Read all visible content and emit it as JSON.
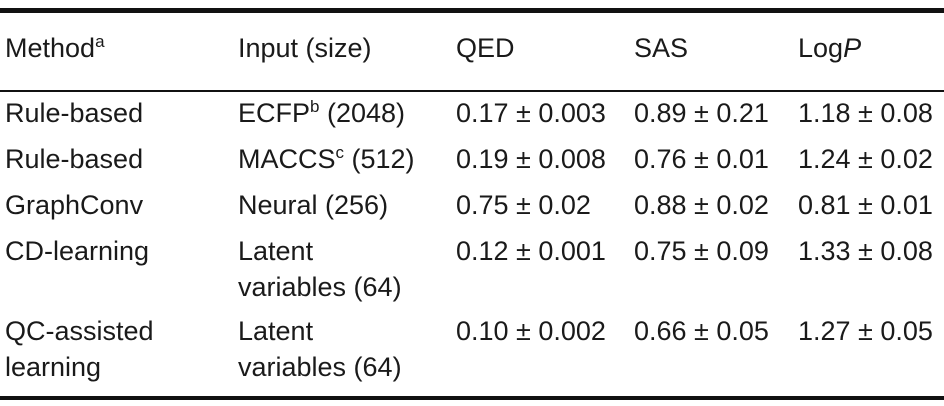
{
  "table": {
    "headers": {
      "method": "Method",
      "method_footnote": "a",
      "input": "Input (size)",
      "qed": "QED",
      "sas": "SAS",
      "logp_prefix": "Log",
      "logp_italic": "P"
    },
    "rows": [
      {
        "method_line1": "Rule-based",
        "method_line2": "",
        "input_main": "ECFP",
        "input_sup": "b",
        "input_rest": " (2048)",
        "input_line2": "",
        "qed": "0.17 ± 0.003",
        "sas": "0.89 ± 0.21",
        "logp": "1.18 ± 0.08"
      },
      {
        "method_line1": "Rule-based",
        "method_line2": "",
        "input_main": "MACCS",
        "input_sup": "c",
        "input_rest": " (512)",
        "input_line2": "",
        "qed": "0.19 ± 0.008",
        "sas": "0.76 ± 0.01",
        "logp": "1.24 ± 0.02"
      },
      {
        "method_line1": "GraphConv",
        "method_line2": "",
        "input_main": "Neural (256)",
        "input_sup": "",
        "input_rest": "",
        "input_line2": "",
        "qed": "0.75 ± 0.02",
        "sas": "0.88 ± 0.02",
        "logp": "0.81 ± 0.01"
      },
      {
        "method_line1": "CD-learning",
        "method_line2": "",
        "input_main": "Latent",
        "input_sup": "",
        "input_rest": "",
        "input_line2": "variables (64)",
        "qed": "0.12 ± 0.001",
        "sas": "0.75 ± 0.09",
        "logp": "1.33 ± 0.08"
      },
      {
        "method_line1": "QC-assisted",
        "method_line2": "learning",
        "input_main": "Latent",
        "input_sup": "",
        "input_rest": "",
        "input_line2": "variables (64)",
        "qed": "0.10 ± 0.002",
        "sas": "0.66 ± 0.05",
        "logp": "1.27 ± 0.05"
      }
    ]
  }
}
